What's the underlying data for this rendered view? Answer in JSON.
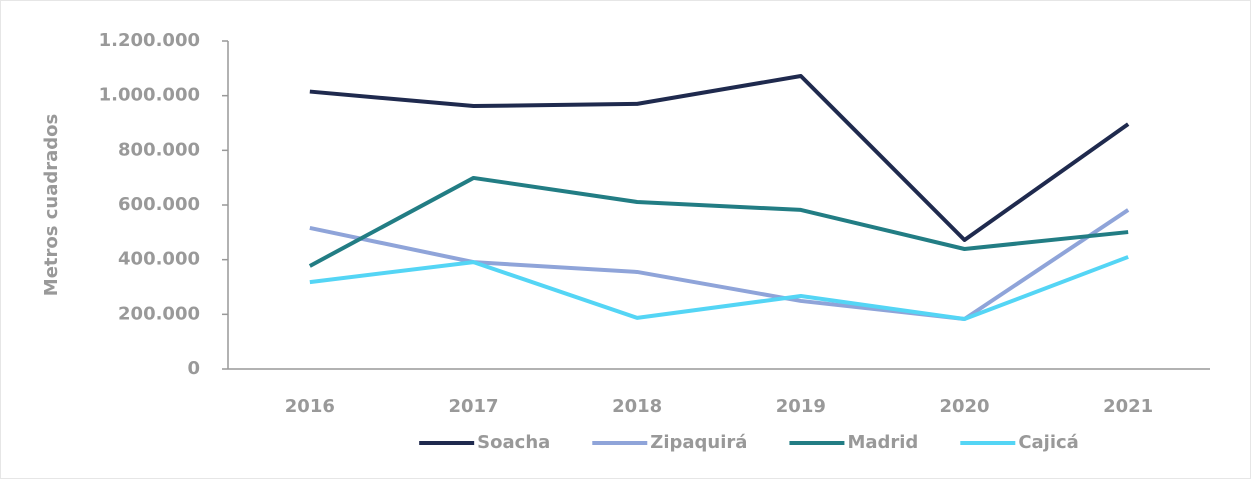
{
  "chart_data": {
    "type": "line",
    "y_label": "Metros cuadrados",
    "categories": [
      "2016",
      "2017",
      "2018",
      "2019",
      "2020",
      "2021"
    ],
    "series": [
      {
        "name": "Soacha",
        "color": "#1f2a4e",
        "values": [
          1015000,
          962000,
          970000,
          1072000,
          472000,
          896000
        ]
      },
      {
        "name": "Zipaquirá",
        "color": "#8fa4d9",
        "values": [
          516000,
          391000,
          355000,
          249000,
          183000,
          582000
        ]
      },
      {
        "name": "Madrid",
        "color": "#227d84",
        "values": [
          377000,
          699000,
          611000,
          582000,
          439000,
          501000
        ]
      },
      {
        "name": "Cajicá",
        "color": "#54d5f5",
        "values": [
          318000,
          391000,
          187000,
          267000,
          183000,
          410000
        ]
      }
    ],
    "ylim": [
      0,
      1200000
    ],
    "yticks": [
      0,
      {
        "value": 200000,
        "label": "200.000"
      },
      {
        "value": 400000,
        "label": "400.000"
      },
      {
        "value": 600000,
        "label": "600.000"
      },
      {
        "value": 800000,
        "label": "800.000"
      },
      {
        "value": 1000000,
        "label": "1.000.000"
      },
      {
        "value": 1200000,
        "label": "1.200.000"
      }
    ],
    "legend": "bottom"
  }
}
